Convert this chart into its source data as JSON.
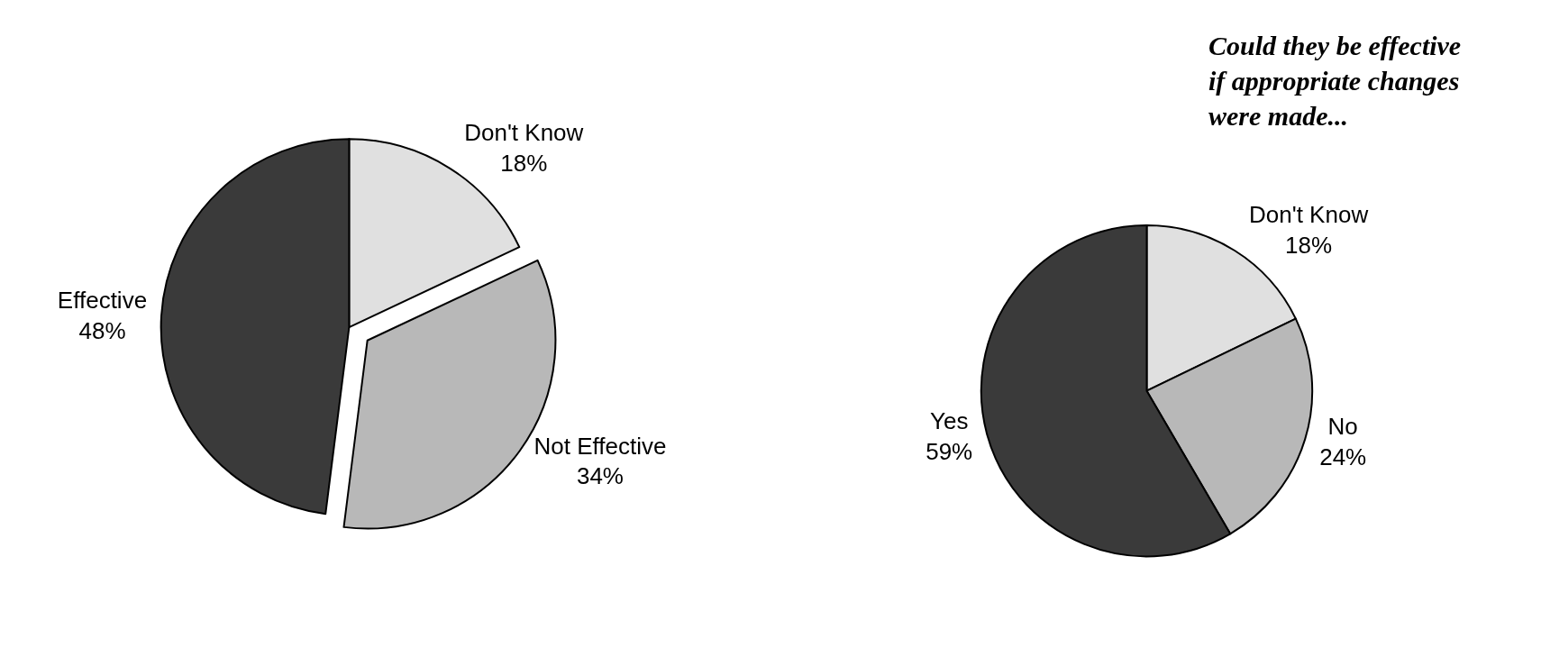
{
  "chart_data": [
    {
      "type": "pie",
      "categories": [
        "Don't Know",
        "Not Effective",
        "Effective"
      ],
      "values": [
        18,
        34,
        48
      ],
      "value_labels": [
        "18%",
        "34%",
        "48%"
      ],
      "colors": [
        "#e0e0e0",
        "#b8b8b8",
        "#3a3a3a"
      ]
    },
    {
      "type": "pie",
      "title": "Could they be effective if appropriate changes were made...",
      "categories": [
        "Don't Know",
        "No",
        "Yes"
      ],
      "values": [
        18,
        24,
        59
      ],
      "value_labels": [
        "18%",
        "24%",
        "59%"
      ],
      "colors": [
        "#e0e0e0",
        "#b8b8b8",
        "#3a3a3a"
      ]
    }
  ]
}
